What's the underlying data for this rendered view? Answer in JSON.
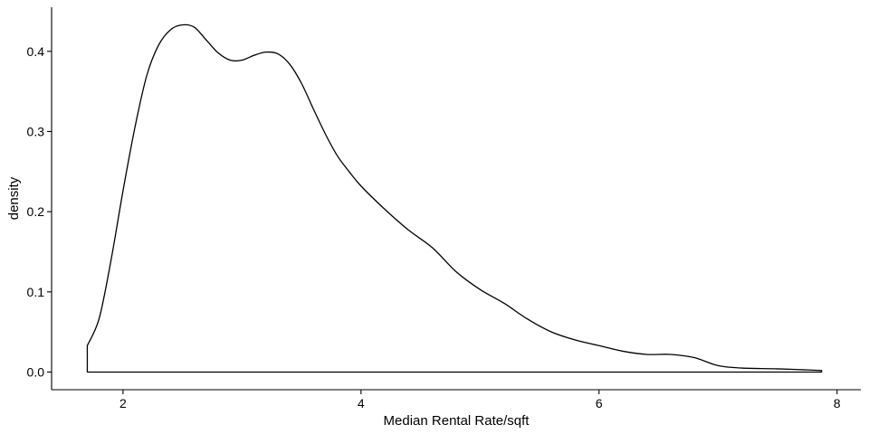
{
  "chart_data": {
    "type": "area",
    "title": "",
    "xlabel": "Median Rental Rate/sqft",
    "ylabel": "density",
    "xlim": [
      1.4,
      8.2
    ],
    "ylim": [
      -0.022,
      0.455
    ],
    "x_ticks": [
      2,
      4,
      6,
      8
    ],
    "x_tick_labels": [
      "2",
      "4",
      "6",
      "8"
    ],
    "y_ticks": [
      0.0,
      0.1,
      0.2,
      0.3,
      0.4
    ],
    "y_tick_labels": [
      "0.0",
      "0.1",
      "0.2",
      "0.3",
      "0.4"
    ],
    "grid": false,
    "legend": "none",
    "series": [
      {
        "x": [
          1.7,
          1.8,
          1.9,
          2.0,
          2.1,
          2.2,
          2.3,
          2.4,
          2.5,
          2.6,
          2.7,
          2.8,
          2.9,
          3.0,
          3.1,
          3.2,
          3.3,
          3.4,
          3.5,
          3.6,
          3.7,
          3.8,
          3.9,
          4.0,
          4.2,
          4.4,
          4.6,
          4.8,
          5.0,
          5.2,
          5.4,
          5.6,
          5.8,
          6.0,
          6.2,
          6.4,
          6.6,
          6.8,
          7.0,
          7.2,
          7.5,
          7.87
        ],
        "y": [
          0.033,
          0.067,
          0.14,
          0.226,
          0.305,
          0.37,
          0.408,
          0.427,
          0.433,
          0.43,
          0.414,
          0.398,
          0.389,
          0.389,
          0.395,
          0.399,
          0.397,
          0.384,
          0.36,
          0.328,
          0.297,
          0.27,
          0.25,
          0.232,
          0.203,
          0.177,
          0.155,
          0.125,
          0.103,
          0.086,
          0.066,
          0.05,
          0.04,
          0.033,
          0.026,
          0.022,
          0.022,
          0.018,
          0.008,
          0.005,
          0.004,
          0.002
        ]
      }
    ],
    "colors": {
      "line": "#000000",
      "fill": "none",
      "axis": "#000000"
    }
  }
}
